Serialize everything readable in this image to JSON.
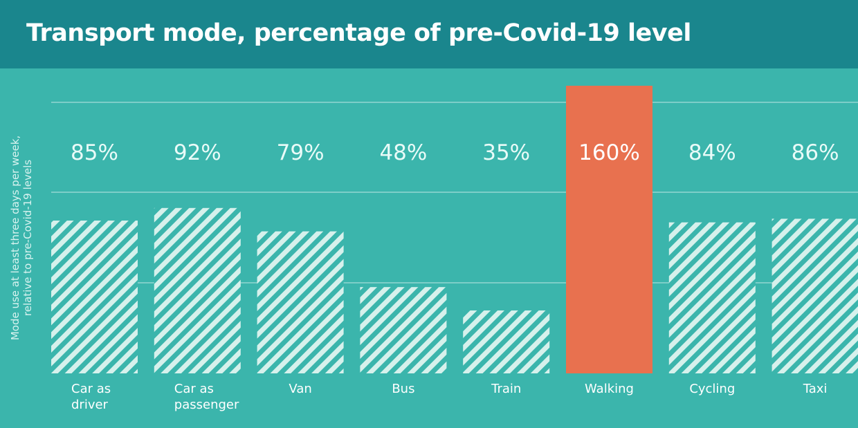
{
  "header": {
    "title": "Transport mode, percentage of pre-Covid-19 level"
  },
  "chart_data": {
    "type": "bar",
    "title": "Transport mode, percentage of pre-Covid-19 level",
    "ylabel": "Mode use at least three days per week, relative to pre-Covid-19 levels",
    "ylabel_lines": [
      "Mode use at least three days per week,",
      "relative to pre-Covid-19 levels"
    ],
    "xlabel": "",
    "ylim": [
      0,
      170
    ],
    "grid": true,
    "categories": [
      [
        "Car as",
        "driver"
      ],
      [
        "Car as",
        "passenger"
      ],
      [
        "Van"
      ],
      [
        "Bus"
      ],
      [
        "Train"
      ],
      [
        "Walking"
      ],
      [
        "Cycling"
      ],
      [
        "Taxi"
      ]
    ],
    "values": [
      85,
      92,
      79,
      48,
      35,
      160,
      84,
      86
    ],
    "value_labels": [
      "85%",
      "92%",
      "79%",
      "48%",
      "35%",
      "160%",
      "84%",
      "86%"
    ],
    "highlight_index": 5,
    "colors": {
      "background": "#3bb5ac",
      "header": "#1a868d",
      "stripe_light": "#d6f1ec",
      "highlight": "#e8714f",
      "gridline": "#bfe8e3"
    }
  }
}
